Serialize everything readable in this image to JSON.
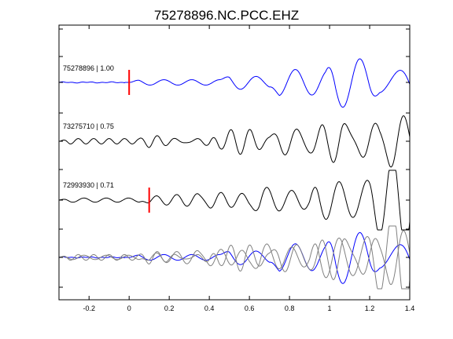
{
  "chart_data": {
    "type": "line",
    "title": "75278896.NC.PCC.EHZ",
    "xlim": [
      -0.35,
      1.4
    ],
    "x_ticks": [
      -0.2,
      0,
      0.2,
      0.4,
      0.6,
      0.8,
      1,
      1.2,
      1.4
    ],
    "x_tick_labels": [
      "-0.2",
      "0",
      "0.2",
      "0.4",
      "0.6",
      "0.8",
      "1",
      "1.2",
      "1.4"
    ],
    "grid": false,
    "colors": {
      "reference": "#0000ff",
      "other": "#000000",
      "overlay_other": "#808080",
      "pick": "#ff0000"
    },
    "traces": [
      {
        "label": "75278896 | 1.00",
        "color": "reference",
        "pick_time": 0.0,
        "quiet_until": -0.02,
        "noise": 0.02,
        "segments": [
          {
            "t0": 0.0,
            "amp": 0.18,
            "freq": 7.2,
            "phase": 0.0
          },
          {
            "t0": 0.45,
            "amp": 0.5,
            "freq": 6.5,
            "phase": 0.0
          },
          {
            "t0": 0.7,
            "amp": 0.85,
            "freq": 6.0,
            "phase": 2.6
          },
          {
            "t0": 0.98,
            "amp": 1.0,
            "freq": 5.6,
            "phase": 1.9
          },
          {
            "t0": 1.2,
            "amp": 0.75,
            "freq": 6.2,
            "phase": 0.3
          }
        ]
      },
      {
        "label": "73275710 | 0.75",
        "color": "other",
        "pick_time": null,
        "quiet_until": null,
        "noise": 0.0,
        "segments": [
          {
            "t0": -0.35,
            "amp": 0.18,
            "freq": 13.0,
            "phase": 0.0
          },
          {
            "t0": 0.05,
            "amp": 0.28,
            "freq": 11.0,
            "phase": 1.1
          },
          {
            "t0": 0.4,
            "amp": 0.42,
            "freq": 9.0,
            "phase": 2.3
          },
          {
            "t0": 0.7,
            "amp": 0.6,
            "freq": 8.0,
            "phase": 0.7
          },
          {
            "t0": 1.0,
            "amp": 0.9,
            "freq": 7.2,
            "phase": 3.6
          },
          {
            "t0": 1.25,
            "amp": 0.7,
            "freq": 7.8,
            "phase": 1.4
          }
        ]
      },
      {
        "label": "72993930 | 0.71",
        "color": "other",
        "pick_time": 0.1,
        "quiet_until": null,
        "noise": 0.0,
        "segments": [
          {
            "t0": -0.35,
            "amp": 0.14,
            "freq": 9.0,
            "phase": 0.8
          },
          {
            "t0": 0.05,
            "amp": 0.32,
            "freq": 10.0,
            "phase": 2.0
          },
          {
            "t0": 0.35,
            "amp": 0.45,
            "freq": 9.5,
            "phase": 0.4
          },
          {
            "t0": 0.6,
            "amp": 0.75,
            "freq": 8.2,
            "phase": 2.9
          },
          {
            "t0": 0.9,
            "amp": 0.95,
            "freq": 7.4,
            "phase": 1.2
          },
          {
            "t0": 1.2,
            "amp": 1.0,
            "freq": 6.8,
            "phase": 3.3
          }
        ]
      }
    ]
  }
}
